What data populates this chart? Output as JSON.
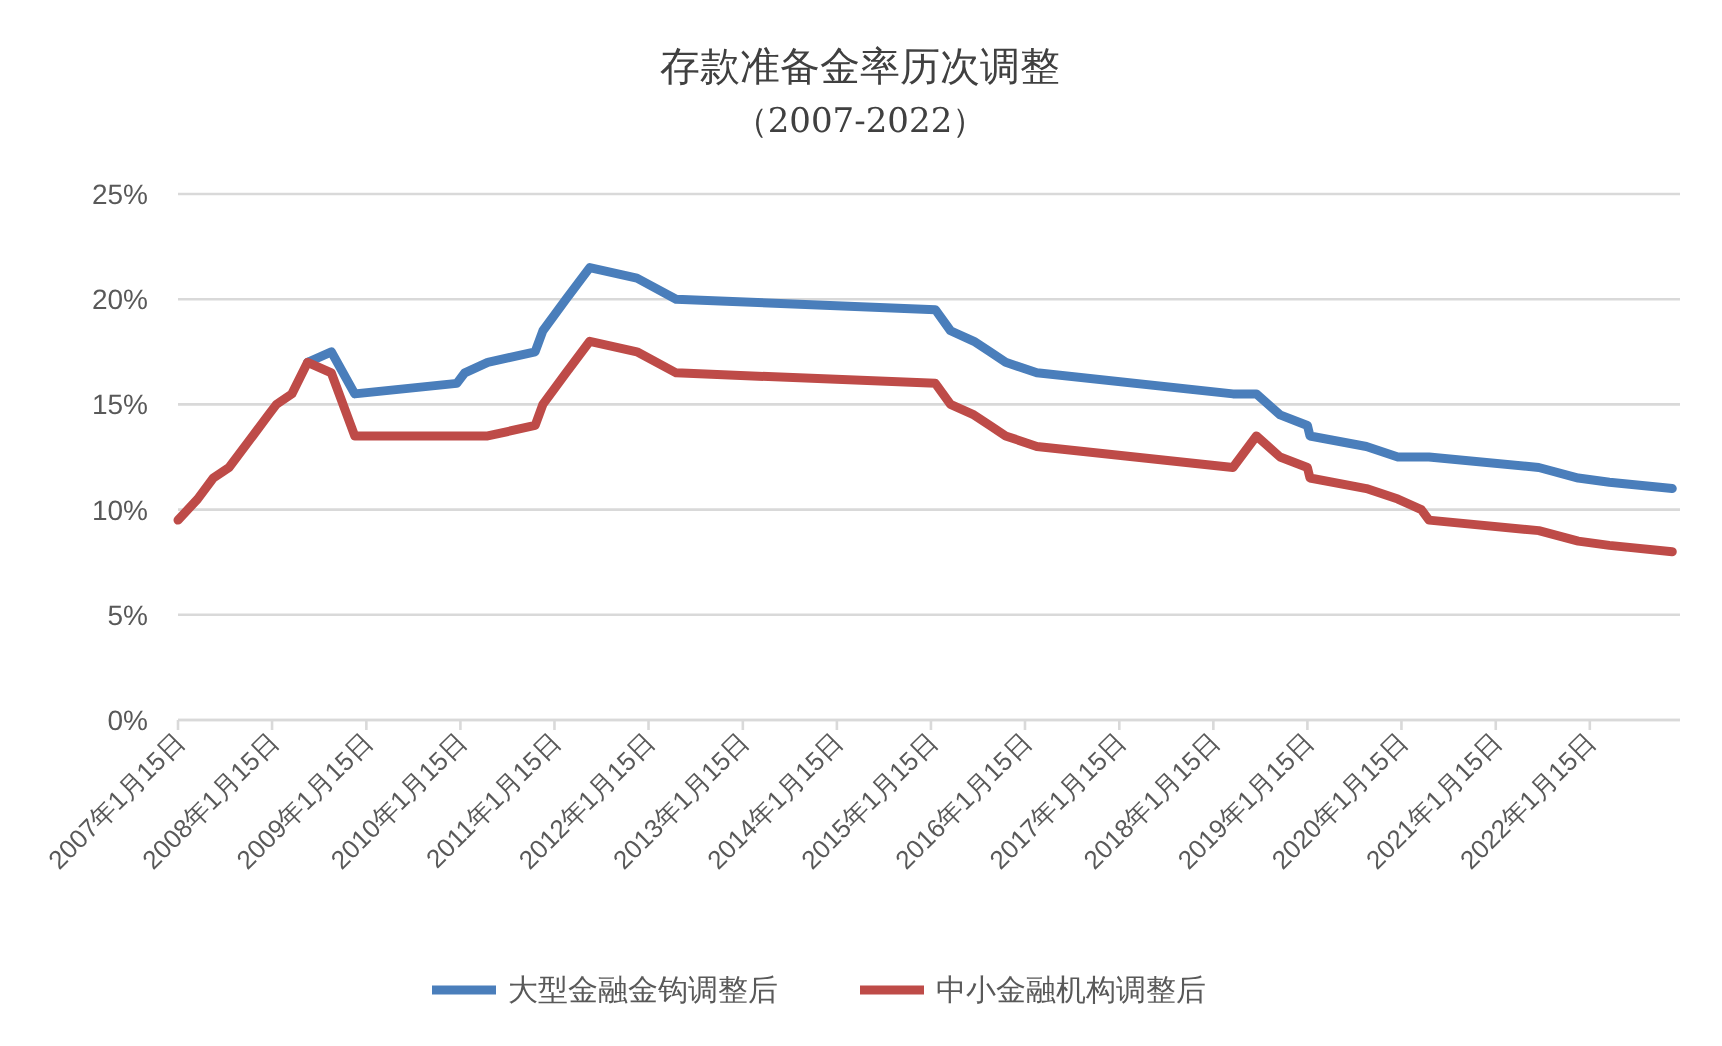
{
  "chart_data": {
    "type": "line",
    "title": "存款准备金率历次调整",
    "subtitle": "（2007-2022）",
    "x": [
      "2007-01-15",
      "2007-04",
      "2007-06",
      "2007-08",
      "2007-11",
      "2008-01",
      "2008-02",
      "2008-04",
      "2008-06",
      "2008-09",
      "2008-12",
      "2010-01",
      "2010-02",
      "2010-05",
      "2010-11",
      "2010-12",
      "2011-03",
      "2011-06",
      "2011-12",
      "2012-05",
      "2015-02",
      "2015-04",
      "2015-07",
      "2015-09",
      "2015-11",
      "2016-03",
      "2018-04",
      "2018-07",
      "2018-10",
      "2019-01-15",
      "2019-01-25",
      "2019-09",
      "2020-01",
      "2020-04",
      "2020-05",
      "2021-07",
      "2021-12",
      "2022-04",
      "2022-12"
    ],
    "series": [
      {
        "name": "大型金融金钩调整后",
        "color": "#4a7ebb",
        "values": [
          null,
          null,
          null,
          null,
          null,
          null,
          null,
          null,
          17,
          17.5,
          15.5,
          16,
          16.5,
          17,
          17.5,
          18.5,
          20,
          21.5,
          21,
          20,
          19.5,
          18.5,
          18,
          17.5,
          17,
          16.5,
          15.5,
          15.5,
          14.5,
          14,
          13.5,
          13,
          12.5,
          12.5,
          12.5,
          12,
          11.5,
          11.3,
          11
        ]
      },
      {
        "name": "中小金融机构调整后",
        "color": "#be4b48",
        "values": [
          9.5,
          10.5,
          11.5,
          12,
          13.5,
          14.5,
          15,
          15.5,
          17,
          16.5,
          13.5,
          13.5,
          13.5,
          13.5,
          14,
          15,
          16.5,
          18,
          17.5,
          16.5,
          16,
          15,
          14.5,
          14,
          13.5,
          13,
          12,
          13.5,
          12.5,
          12,
          11.5,
          11,
          10.5,
          10,
          9.5,
          9,
          8.5,
          8.3,
          8
        ]
      }
    ],
    "xlim": [
      "2007-01-15",
      "2022-12-31"
    ],
    "xticks": [
      {
        "value": "2007-01-15",
        "label": "2007年1月15日"
      },
      {
        "value": "2008-01-15",
        "label": "2008年1月15日"
      },
      {
        "value": "2009-01-15",
        "label": "2009年1月15日"
      },
      {
        "value": "2010-01-15",
        "label": "2010年1月15日"
      },
      {
        "value": "2011-01-15",
        "label": "2011年1月15日"
      },
      {
        "value": "2012-01-15",
        "label": "2012年1月15日"
      },
      {
        "value": "2013-01-15",
        "label": "2013年1月15日"
      },
      {
        "value": "2014-01-15",
        "label": "2014年1月15日"
      },
      {
        "value": "2015-01-15",
        "label": "2015年1月15日"
      },
      {
        "value": "2016-01-15",
        "label": "2016年1月15日"
      },
      {
        "value": "2017-01-15",
        "label": "2017年1月15日"
      },
      {
        "value": "2018-01-15",
        "label": "2018年1月15日"
      },
      {
        "value": "2019-01-15",
        "label": "2019年1月15日"
      },
      {
        "value": "2020-01-15",
        "label": "2020年1月15日"
      },
      {
        "value": "2021-01-15",
        "label": "2021年1月15日"
      },
      {
        "value": "2022-01-15",
        "label": "2022年1月15日"
      }
    ],
    "ylim": [
      0,
      25
    ],
    "yticks": [
      {
        "value": 0,
        "label": "0%"
      },
      {
        "value": 5,
        "label": "5%"
      },
      {
        "value": 10,
        "label": "10%"
      },
      {
        "value": 15,
        "label": "15%"
      },
      {
        "value": 20,
        "label": "20%"
      },
      {
        "value": 25,
        "label": "25%"
      }
    ],
    "grid": "y",
    "legend": "bottom"
  }
}
